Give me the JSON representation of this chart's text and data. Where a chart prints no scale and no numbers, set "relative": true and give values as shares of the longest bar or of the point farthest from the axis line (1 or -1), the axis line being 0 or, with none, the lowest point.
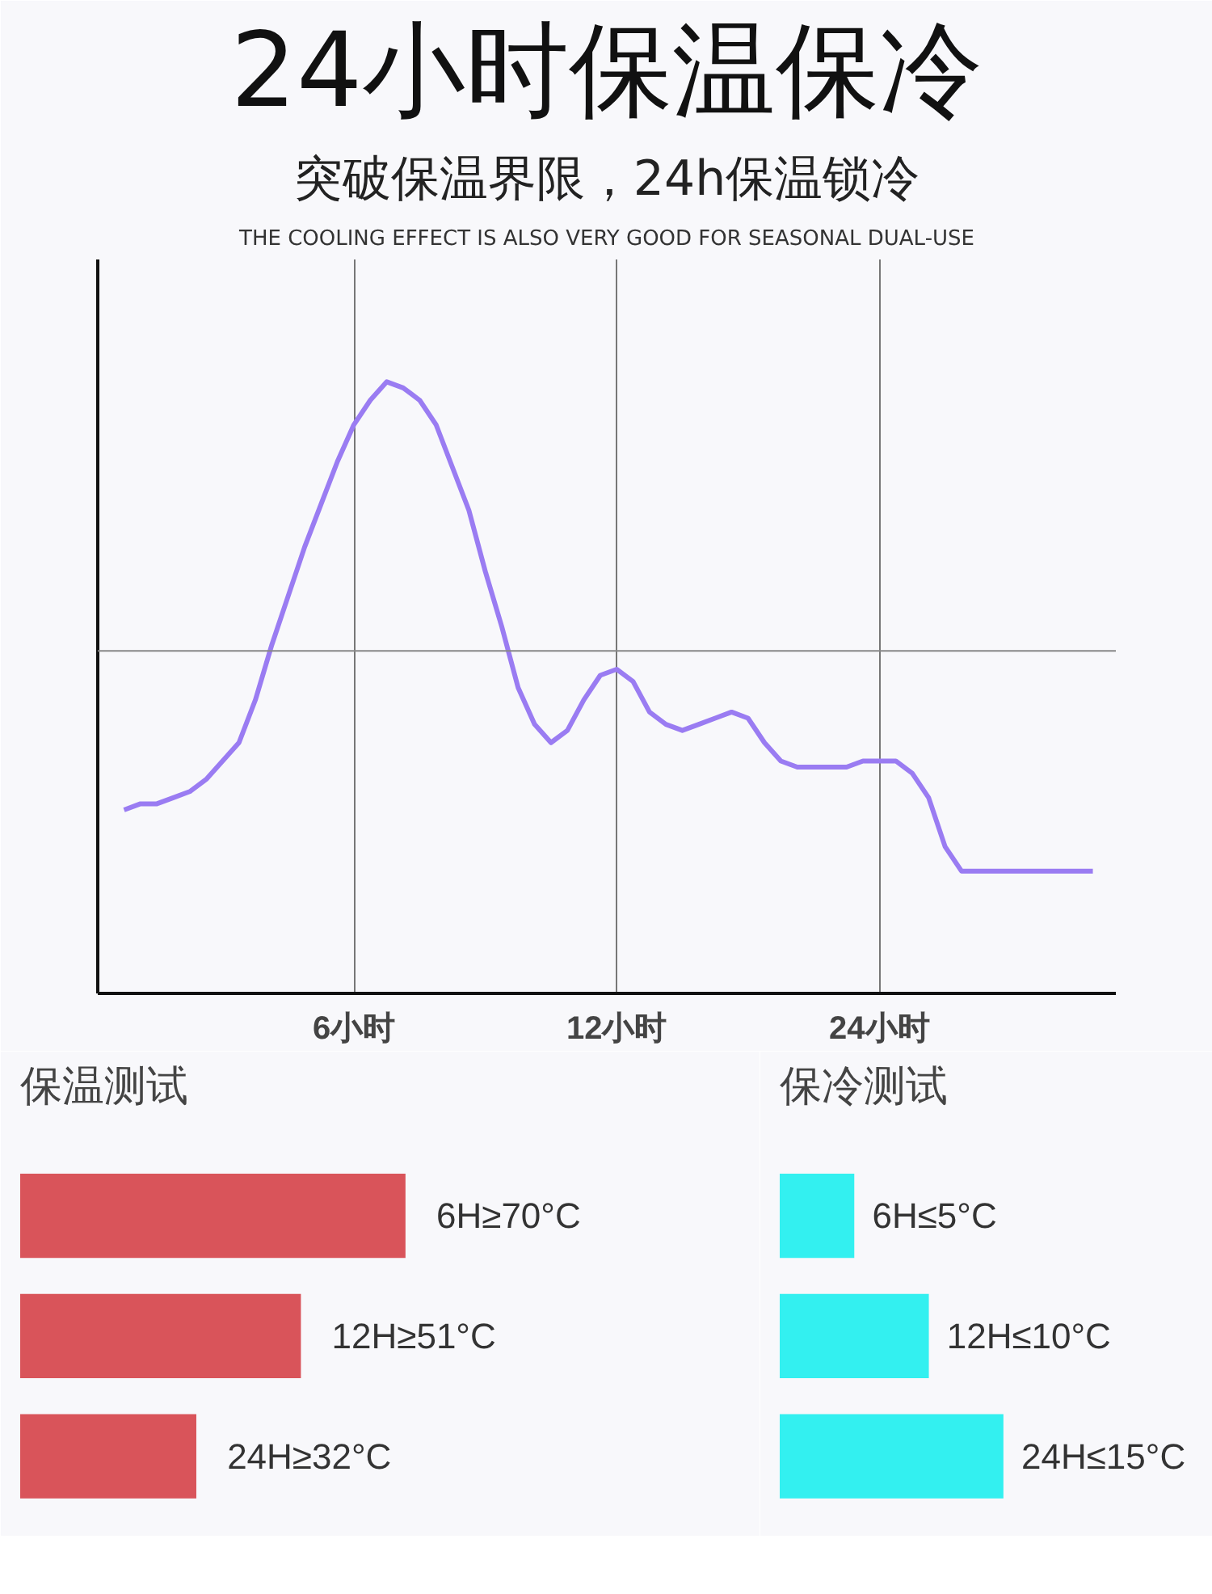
{
  "chart_data": [
    {
      "type": "line",
      "title": "24小时保温保冷",
      "subtitle": "突破保温界限，24h保温锁冷",
      "annotations": [
        "THE COOLING EFFECT IS ALSO VERY GOOD FOR SEASONAL DUAL-USE"
      ],
      "relative": true,
      "grid": "x",
      "ref_lines": [
        {
          "axis": "y",
          "value": 0.56,
          "label": null,
          "color": "#888888"
        }
      ],
      "categories": [
        null,
        null,
        null,
        null,
        null,
        null,
        null,
        null,
        null,
        null,
        null,
        null,
        null,
        null,
        "6小时",
        null,
        null,
        null,
        null,
        null,
        null,
        null,
        null,
        null,
        null,
        null,
        null,
        null,
        null,
        null,
        "12小时",
        null,
        null,
        null,
        null,
        null,
        null,
        null,
        null,
        null,
        null,
        null,
        null,
        null,
        null,
        null,
        "24小时",
        null,
        null,
        null,
        null,
        null,
        null,
        null,
        null,
        null,
        null,
        null,
        null,
        null
      ],
      "series": [
        {
          "color": "#9a7cf2",
          "values": [
            0.3,
            0.31,
            0.31,
            0.32,
            0.33,
            0.35,
            0.38,
            0.41,
            0.48,
            0.57,
            0.65,
            0.73,
            0.8,
            0.87,
            0.93,
            0.97,
            1.0,
            0.99,
            0.97,
            0.93,
            0.86,
            0.79,
            0.69,
            0.6,
            0.5,
            0.44,
            0.41,
            0.43,
            0.48,
            0.52,
            0.53,
            0.51,
            0.46,
            0.44,
            0.43,
            0.44,
            0.45,
            0.46,
            0.45,
            0.41,
            0.38,
            0.37,
            0.37,
            0.37,
            0.37,
            0.38,
            0.38,
            0.38,
            0.36,
            0.32,
            0.24,
            0.2,
            0.2,
            0.2,
            0.2,
            0.2,
            0.2,
            0.2,
            0.2,
            0.2
          ]
        }
      ]
    },
    {
      "type": "bar",
      "orientation": "horizontal",
      "title": "保温测试",
      "categories": [
        null,
        null,
        null
      ],
      "values": [
        70,
        51,
        32
      ],
      "color": "#d9545a",
      "value_labels": [
        "6H≥70°C",
        "12H≥51°C",
        "24H≥32°C"
      ]
    },
    {
      "type": "bar",
      "orientation": "horizontal",
      "title": "保冷测试",
      "categories": [
        null,
        null,
        null
      ],
      "values": [
        5,
        10,
        15
      ],
      "color": "#33f0f0",
      "value_labels": [
        "6H≤5°C",
        "12H≤10°C",
        "24H≤15°C"
      ]
    }
  ]
}
